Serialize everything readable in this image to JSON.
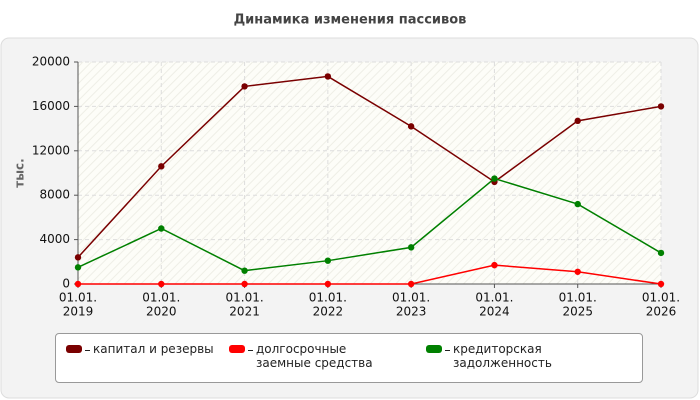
{
  "chart_data": {
    "type": "line",
    "title": "Динамика изменения пассивов",
    "y_label": "тыс.",
    "categories": [
      [
        "01.01.",
        "2019"
      ],
      [
        "01.01.",
        "2020"
      ],
      [
        "01.01.",
        "2021"
      ],
      [
        "01.01.",
        "2022"
      ],
      [
        "01.01.",
        "2023"
      ],
      [
        "01.01.",
        "2024"
      ],
      [
        "01.01.",
        "2025"
      ],
      [
        "01.01.",
        "2026"
      ]
    ],
    "series": [
      {
        "name": "капитал и резервы",
        "color": "#7a0000",
        "values": [
          2400,
          10600,
          17800,
          18700,
          14200,
          9200,
          14700,
          16000
        ]
      },
      {
        "name": "долгосрочные заемные средства",
        "color": "#ff0000",
        "values": [
          0,
          0,
          0,
          0,
          0,
          1700,
          1100,
          0
        ]
      },
      {
        "name": "кредиторская задолженность",
        "color": "#008000",
        "values": [
          1500,
          5000,
          1200,
          2100,
          3300,
          9500,
          7200,
          2800
        ]
      }
    ],
    "ylim": [
      0,
      20000
    ],
    "yticks": [
      0,
      4000,
      8000,
      12000,
      16000,
      20000
    ],
    "grid": true
  }
}
